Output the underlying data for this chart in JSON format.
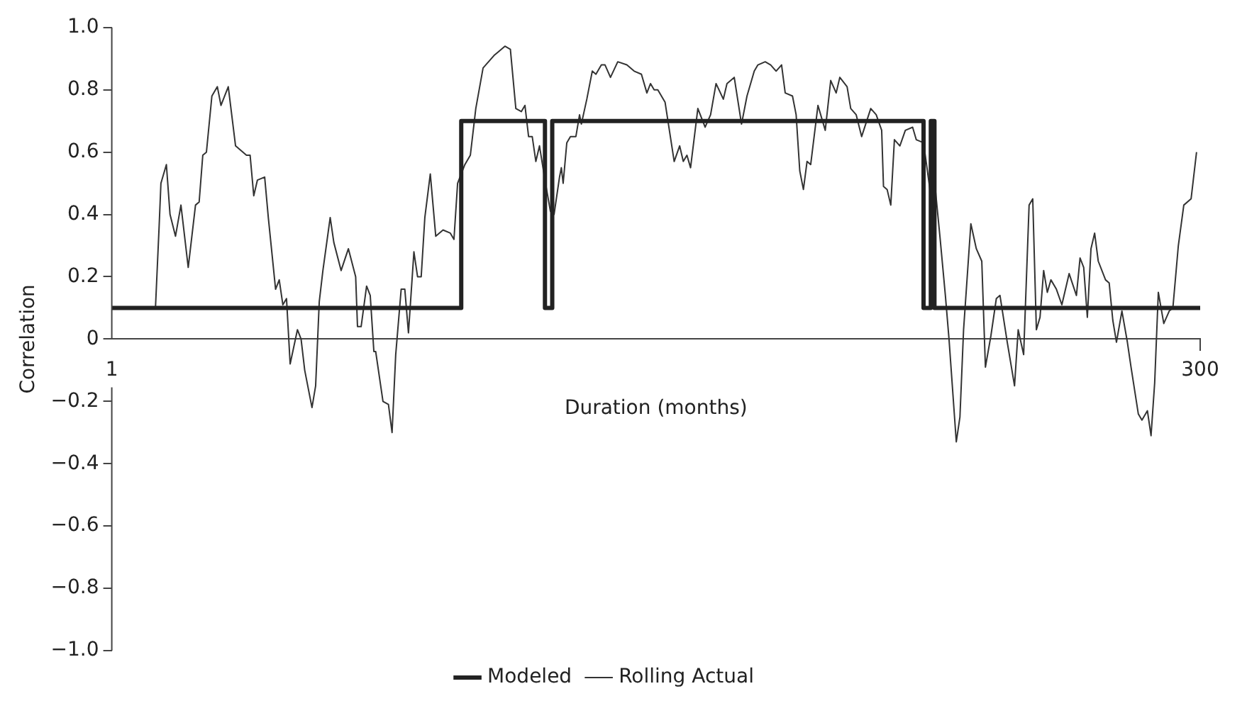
{
  "chart_data": {
    "type": "line",
    "xlabel": "Duration (months)",
    "ylabel": "Correlation",
    "xlim": [
      1,
      300
    ],
    "xticks": [
      1,
      300
    ],
    "ylim": [
      -1,
      1
    ],
    "yticks": [
      {
        "value": -1,
        "label": "−1.0"
      },
      {
        "value": -0.8,
        "label": "−0.8"
      },
      {
        "value": -0.6,
        "label": "−0.6"
      },
      {
        "value": -0.4,
        "label": "−0.4"
      },
      {
        "value": -0.2,
        "label": "−0.2"
      },
      0,
      0.2,
      0.4,
      0.6,
      0.8,
      {
        "value": 1,
        "label": "1.0"
      }
    ],
    "grid": false,
    "legend": "bottom",
    "marker": "none",
    "line_style": "solid",
    "series": [
      {
        "name": "Modeled",
        "color": "#222222",
        "x": [
          1,
          97,
          97,
          120,
          120,
          122,
          122,
          224,
          224,
          226,
          226,
          227,
          227,
          300
        ],
        "values": [
          0.1,
          0.1,
          0.7,
          0.7,
          0.1,
          0.1,
          0.7,
          0.7,
          0.1,
          0.1,
          0.7,
          0.7,
          0.1,
          0.1
        ]
      },
      {
        "name": "Rolling Actual",
        "color": "#333333",
        "x": [
          13,
          14,
          14.5,
          16,
          17,
          18.5,
          20,
          22,
          24,
          25,
          26,
          27,
          28.5,
          30,
          31,
          33,
          35,
          38,
          39,
          40,
          41,
          43,
          44,
          46,
          47,
          48,
          49,
          50,
          52,
          53,
          54,
          56,
          57,
          58,
          59,
          61,
          62,
          64,
          66,
          68,
          68.5,
          69.5,
          71,
          72,
          73,
          73.5,
          75.5,
          77,
          78,
          79,
          80.5,
          81.5,
          82.5,
          84,
          85,
          86,
          87,
          88.5,
          90,
          92,
          94,
          95,
          96,
          98,
          99.5,
          101,
          103,
          106,
          107,
          109,
          110.5,
          112,
          113.5,
          114.5,
          115.5,
          116.5,
          117.5,
          118.5,
          120,
          121.5,
          122.5,
          124,
          124.5,
          125,
          126,
          127,
          128.5,
          129.5,
          130,
          131.5,
          133,
          134,
          135.5,
          136.5,
          138,
          140,
          142.5,
          144.5,
          146.5,
          148,
          149,
          150,
          151,
          153,
          155.5,
          157,
          158,
          159,
          160,
          162,
          164,
          165.5,
          167,
          169,
          170,
          172,
          174,
          175.5,
          177.5,
          178.5,
          180.5,
          182,
          183.5,
          185,
          186,
          188,
          189,
          190,
          191,
          192,
          193,
          195,
          197,
          198.5,
          200,
          201,
          203,
          204,
          205.5,
          207,
          209.5,
          211,
          212.5,
          213,
          214,
          215,
          216,
          217.5,
          219,
          221,
          222,
          224,
          226,
          227,
          228.5,
          230,
          231,
          233,
          234,
          235,
          237,
          238.5,
          240,
          241,
          242.5,
          244,
          245,
          247,
          249,
          250,
          251.5,
          253,
          254,
          255,
          256,
          257,
          258,
          259,
          260.5,
          262,
          264,
          266,
          267,
          268,
          269,
          270,
          271,
          272,
          274,
          275,
          276,
          277,
          278.5,
          280,
          281,
          283,
          284,
          285.5,
          286.5,
          287.5,
          288.5,
          290,
          291.5,
          292.5,
          294,
          295.5,
          297.5,
          299
        ],
        "values": [
          0.1,
          0.36,
          0.5,
          0.56,
          0.4,
          0.33,
          0.43,
          0.23,
          0.43,
          0.44,
          0.59,
          0.6,
          0.78,
          0.81,
          0.75,
          0.81,
          0.62,
          0.59,
          0.59,
          0.46,
          0.51,
          0.52,
          0.39,
          0.16,
          0.19,
          0.11,
          0.13,
          -0.08,
          0.03,
          0,
          -0.1,
          -0.22,
          -0.15,
          0.12,
          0.22,
          0.39,
          0.31,
          0.22,
          0.29,
          0.2,
          0.04,
          0.04,
          0.17,
          0.14,
          -0.04,
          -0.04,
          -0.2,
          -0.21,
          -0.3,
          -0.05,
          0.16,
          0.16,
          0.02,
          0.28,
          0.2,
          0.2,
          0.39,
          0.53,
          0.33,
          0.35,
          0.34,
          0.32,
          0.5,
          0.56,
          0.59,
          0.74,
          0.87,
          0.91,
          0.92,
          0.94,
          0.93,
          0.74,
          0.73,
          0.75,
          0.65,
          0.65,
          0.57,
          0.62,
          0.51,
          0.41,
          0.4,
          0.52,
          0.55,
          0.5,
          0.63,
          0.65,
          0.65,
          0.72,
          0.69,
          0.77,
          0.86,
          0.85,
          0.88,
          0.88,
          0.84,
          0.89,
          0.88,
          0.86,
          0.85,
          0.79,
          0.82,
          0.8,
          0.8,
          0.76,
          0.57,
          0.62,
          0.57,
          0.59,
          0.55,
          0.74,
          0.68,
          0.72,
          0.82,
          0.77,
          0.82,
          0.84,
          0.69,
          0.78,
          0.86,
          0.88,
          0.89,
          0.88,
          0.86,
          0.88,
          0.79,
          0.78,
          0.72,
          0.54,
          0.48,
          0.57,
          0.56,
          0.75,
          0.67,
          0.83,
          0.79,
          0.84,
          0.81,
          0.74,
          0.72,
          0.65,
          0.74,
          0.72,
          0.67,
          0.49,
          0.48,
          0.43,
          0.64,
          0.62,
          0.67,
          0.68,
          0.64,
          0.63,
          0.46,
          0.51,
          0.33,
          0.14,
          0,
          -0.33,
          -0.25,
          0.03,
          0.37,
          0.29,
          0.25,
          -0.09,
          0.01,
          0.13,
          0.14,
          -0.01,
          -0.15,
          0.03,
          -0.05,
          0.43,
          0.45,
          0.03,
          0.07,
          0.22,
          0.15,
          0.19,
          0.16,
          0.11,
          0.21,
          0.14,
          0.26,
          0.23,
          0.07,
          0.29,
          0.34,
          0.25,
          0.19,
          0.18,
          0.06,
          -0.01,
          0.09,
          -0.01,
          -0.09,
          -0.24,
          -0.26,
          -0.23,
          -0.31,
          -0.14,
          0.15,
          0.05,
          0.09,
          0.1,
          0.3,
          0.43,
          0.45,
          0.6
        ]
      }
    ]
  }
}
